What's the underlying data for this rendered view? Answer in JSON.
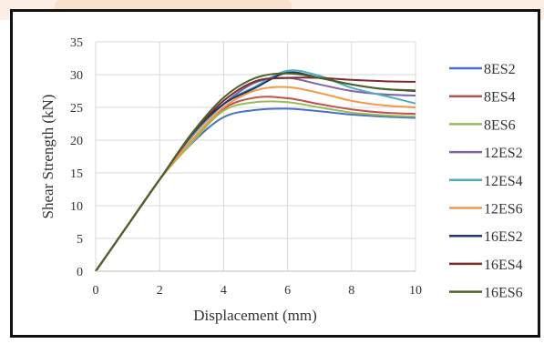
{
  "chart_data": {
    "type": "line",
    "xlabel": "Displacement (mm)",
    "ylabel": "Shear Strength (kN)",
    "xlim": [
      0,
      10
    ],
    "ylim": [
      0,
      35
    ],
    "xticks": [
      "0",
      "2",
      "4",
      "6",
      "8",
      "10"
    ],
    "yticks": [
      "0",
      "5",
      "10",
      "15",
      "20",
      "25",
      "30",
      "35"
    ],
    "grid": true,
    "legend_position": "right",
    "series": [
      {
        "name": "8ES2",
        "color": "#4472c4",
        "x": [
          0,
          1,
          2,
          3,
          4,
          5,
          6,
          7,
          8,
          9,
          10
        ],
        "y": [
          0,
          7,
          14,
          19.5,
          23.5,
          24.6,
          24.8,
          24.4,
          23.9,
          23.6,
          23.4
        ]
      },
      {
        "name": "8ES4",
        "color": "#c0504d",
        "x": [
          0,
          1,
          2,
          3,
          4,
          5,
          6,
          7,
          8,
          9,
          10
        ],
        "y": [
          0,
          7,
          14,
          19.8,
          24.8,
          26.5,
          26.4,
          25.5,
          24.7,
          24.2,
          24.0
        ]
      },
      {
        "name": "8ES6",
        "color": "#9bbb59",
        "x": [
          0,
          1,
          2,
          3,
          4,
          5,
          6,
          7,
          8,
          9,
          10
        ],
        "y": [
          0,
          7,
          14,
          19.6,
          24.5,
          25.8,
          25.8,
          25.0,
          24.2,
          23.8,
          23.6
        ]
      },
      {
        "name": "12ES2",
        "color": "#8064a2",
        "x": [
          0,
          1,
          2,
          3,
          4,
          5,
          6,
          7,
          8,
          9,
          10
        ],
        "y": [
          0,
          7,
          14,
          20.5,
          25.5,
          28.8,
          29.5,
          28.5,
          27.5,
          27.0,
          26.8
        ]
      },
      {
        "name": "12ES4",
        "color": "#4bacc6",
        "x": [
          0,
          1,
          2,
          3,
          4,
          5,
          6,
          7,
          8,
          9,
          10
        ],
        "y": [
          0,
          7,
          14,
          20.5,
          25.5,
          28.2,
          30.6,
          29.8,
          28.0,
          26.8,
          25.6
        ]
      },
      {
        "name": "12ES6",
        "color": "#f79646",
        "x": [
          0,
          1,
          2,
          3,
          4,
          5,
          6,
          7,
          8,
          9,
          10
        ],
        "y": [
          0,
          7,
          14,
          20.0,
          25.0,
          27.6,
          28.1,
          27.2,
          26.0,
          25.3,
          25.0
        ]
      },
      {
        "name": "16ES2",
        "color": "#1f3864",
        "x": [
          0,
          1,
          2,
          3,
          4,
          5,
          6,
          7,
          8,
          9,
          10
        ],
        "y": [
          0,
          7,
          14,
          20.8,
          25.5,
          28.0,
          30.3,
          29.5,
          28.5,
          27.8,
          27.5
        ]
      },
      {
        "name": "16ES4",
        "color": "#7b2c2c",
        "x": [
          0,
          1,
          2,
          3,
          4,
          5,
          6,
          7,
          8,
          9,
          10
        ],
        "y": [
          0,
          7,
          14,
          20.8,
          26.0,
          29.0,
          29.5,
          29.5,
          29.2,
          29.0,
          28.9
        ]
      },
      {
        "name": "16ES6",
        "color": "#4f6228",
        "x": [
          0,
          1,
          2,
          3,
          4,
          5,
          6,
          7,
          8,
          9,
          10
        ],
        "y": [
          0,
          7,
          14,
          21.0,
          26.5,
          29.5,
          30.2,
          29.5,
          28.5,
          27.8,
          27.6
        ]
      }
    ]
  }
}
